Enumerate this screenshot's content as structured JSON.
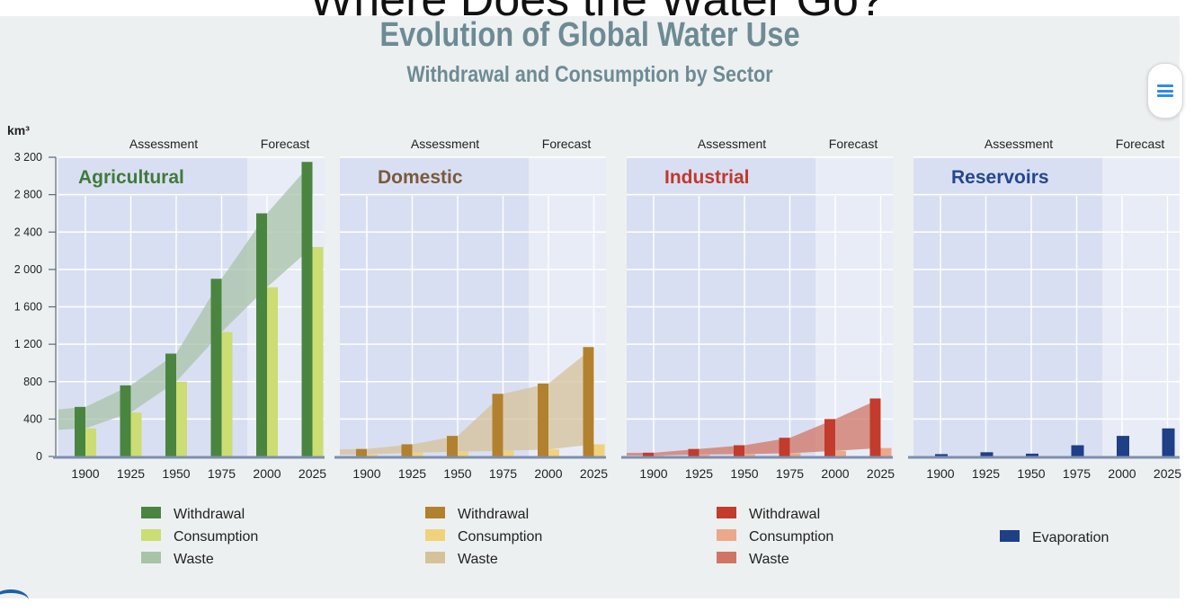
{
  "cut_title": "Where Does the Water Go?",
  "main_title": "Evolution of Global Water Use",
  "sub_title": "Withdrawal and Consumption by Sector",
  "menu_icon": "hamburger-menu-icon",
  "chart_data": {
    "type": "bar",
    "unit_label": "km³",
    "years": [
      "1900",
      "1925",
      "1950",
      "1975",
      "2000",
      "2025"
    ],
    "ylim": [
      0,
      3200
    ],
    "yticks": [
      "0",
      "400",
      "800",
      "1 200",
      "1 600",
      "2 000",
      "2 400",
      "2 800",
      "3 200"
    ],
    "period_labels": {
      "assessment": "Assessment",
      "forecast": "Forecast"
    },
    "panels": [
      {
        "name": "Agricultural",
        "title_color": "#3f7a3a",
        "series": [
          {
            "name": "Withdrawal",
            "color": "#4a8540",
            "values": [
              530,
              760,
              1100,
              1900,
              2600,
              3150
            ]
          },
          {
            "name": "Consumption",
            "color": "#cbdd73",
            "values": [
              300,
              470,
              800,
              1330,
              1810,
              2240
            ]
          },
          {
            "name": "Waste",
            "color": "#a8c3a8",
            "values": [
              230,
              290,
              300,
              570,
              790,
              910
            ]
          }
        ]
      },
      {
        "name": "Domestic",
        "title_color": "#7a5a3c",
        "series": [
          {
            "name": "Withdrawal",
            "color": "#b2812e",
            "values": [
              80,
              130,
              220,
              670,
              780,
              1170
            ]
          },
          {
            "name": "Consumption",
            "color": "#f0d27a",
            "values": [
              20,
              40,
              50,
              60,
              75,
              130
            ]
          },
          {
            "name": "Waste",
            "color": "#d6c29a",
            "values": [
              60,
              90,
              170,
              610,
              705,
              1040
            ]
          }
        ]
      },
      {
        "name": "Industrial",
        "title_color": "#c0392b",
        "series": [
          {
            "name": "Withdrawal",
            "color": "#c23b2c",
            "values": [
              40,
              80,
              120,
              200,
              400,
              620
            ]
          },
          {
            "name": "Consumption",
            "color": "#eda889",
            "values": [
              10,
              20,
              25,
              35,
              60,
              90
            ]
          },
          {
            "name": "Waste",
            "color": "#d07565",
            "values": [
              30,
              60,
              95,
              165,
              340,
              530
            ]
          }
        ]
      },
      {
        "name": "Reservoirs",
        "title_color": "#24478f",
        "series": [
          {
            "name": "Evaporation",
            "color": "#1f3f87",
            "values": [
              25,
              45,
              30,
              120,
              220,
              300
            ]
          }
        ]
      }
    ]
  }
}
